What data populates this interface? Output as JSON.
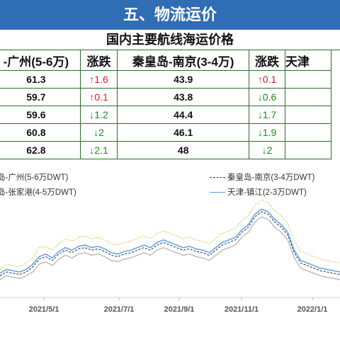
{
  "banner": "五、物流运价",
  "table": {
    "title": "国内主要航线海运价格",
    "headers": [
      "-广州(5-6万)",
      "涨跌",
      "秦皇岛-南京(3-4万)",
      "涨跌",
      "天津"
    ],
    "rows": [
      {
        "a": "61.3",
        "a_chg": "↑1.6",
        "a_dir": "up",
        "b": "43.9",
        "b_chg": "↑0.1",
        "b_dir": "up"
      },
      {
        "a": "59.7",
        "a_chg": "↑0.1",
        "a_dir": "up",
        "b": "43.8",
        "b_chg": "↓0.6",
        "b_dir": "down"
      },
      {
        "a": "59.6",
        "a_chg": "↓1.2",
        "a_dir": "down",
        "b": "44.4",
        "b_chg": "↓1.7",
        "b_dir": "down"
      },
      {
        "a": "60.8",
        "a_chg": "↓2",
        "a_dir": "down",
        "b": "46.1",
        "b_chg": "↓1.9",
        "b_dir": "down"
      },
      {
        "a": "62.8",
        "a_chg": "↓2.1",
        "a_dir": "down",
        "b": "48",
        "b_chg": "↓2",
        "b_dir": "down"
      }
    ]
  },
  "colors": {
    "banner": "#2f6db5",
    "up": "#d81e1e",
    "down": "#1d8a1d"
  },
  "chart_data": {
    "type": "line",
    "x_ticks": [
      "2021/5/1",
      "2021/7/1",
      "2021/9/1",
      "2021/11/1",
      "2022/1/1"
    ],
    "legend_position": "top",
    "series": [
      {
        "name": "岛-广州(5-6万DWT)",
        "color": "#b5c23a",
        "style": "dotted",
        "values": [
          38,
          42,
          41,
          40,
          43,
          47,
          55,
          56,
          53,
          58,
          62,
          60,
          63,
          64,
          62,
          63,
          61,
          58,
          57,
          59,
          60,
          62,
          64,
          62,
          66,
          68,
          66,
          64,
          62,
          63,
          61,
          60,
          58,
          62,
          66,
          68,
          70,
          76,
          80,
          88,
          92,
          90,
          84,
          80,
          74,
          60,
          52,
          50,
          48,
          46,
          45,
          44,
          43
        ]
      },
      {
        "name": "岛-张家港(4-5万DWT)",
        "color": "#a8a8a8",
        "style": "solid",
        "values": [
          30,
          33,
          32,
          31,
          33,
          36,
          42,
          44,
          41,
          46,
          49,
          47,
          50,
          51,
          49,
          50,
          48,
          45,
          44,
          46,
          47,
          49,
          51,
          49,
          53,
          55,
          53,
          51,
          49,
          50,
          48,
          47,
          45,
          49,
          53,
          55,
          57,
          63,
          67,
          75,
          79,
          77,
          71,
          67,
          61,
          47,
          39,
          37,
          35,
          33,
          32,
          31,
          30
        ]
      },
      {
        "name": "秦皇岛-南京(3-4万DWT)",
        "color": "#1f3a6e",
        "style": "dashed",
        "values": [
          33,
          36,
          35,
          34,
          36,
          40,
          46,
          48,
          45,
          50,
          53,
          51,
          54,
          55,
          53,
          54,
          52,
          49,
          48,
          50,
          51,
          53,
          55,
          53,
          57,
          59,
          57,
          55,
          53,
          54,
          52,
          51,
          49,
          53,
          57,
          59,
          61,
          67,
          71,
          79,
          83,
          81,
          75,
          71,
          65,
          51,
          43,
          41,
          39,
          37,
          36,
          35,
          34
        ]
      },
      {
        "name": "天津-镇江(2-3万DWT)",
        "color": "#5b9bd5",
        "style": "solid",
        "values": [
          35,
          38,
          37,
          36,
          38,
          42,
          48,
          50,
          47,
          52,
          55,
          53,
          56,
          57,
          55,
          56,
          54,
          51,
          50,
          52,
          53,
          55,
          57,
          55,
          59,
          61,
          59,
          57,
          55,
          56,
          54,
          53,
          51,
          55,
          59,
          61,
          63,
          69,
          73,
          81,
          85,
          83,
          77,
          73,
          67,
          53,
          45,
          43,
          41,
          39,
          38,
          37,
          36
        ]
      }
    ]
  }
}
